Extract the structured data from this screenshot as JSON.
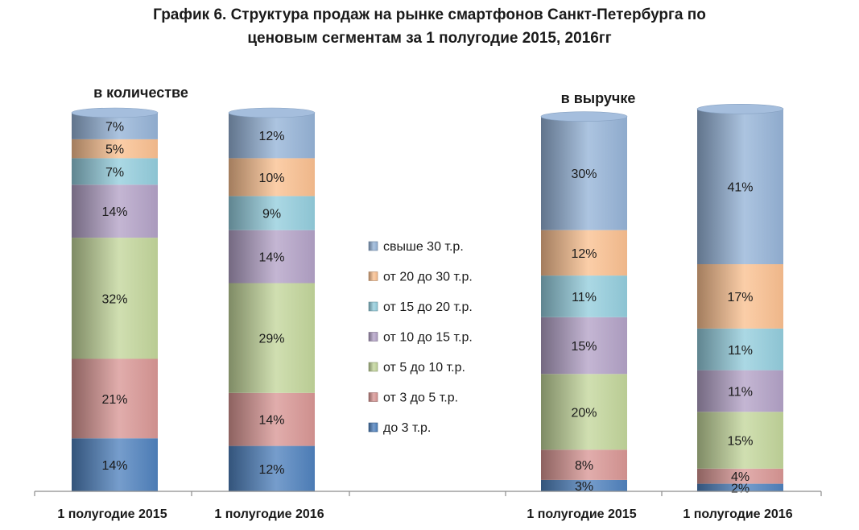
{
  "chart_data": {
    "type": "bar",
    "stacked": true,
    "percent": true,
    "title": [
      "График 6. Структура продаж на рынке смартфонов Санкт-Петербурга по",
      "ценовым сегментам за 1 полугодие 2015, 2016гг"
    ],
    "groups": [
      {
        "label": "в количестве",
        "categories": [
          "1 полугодие 2015",
          "1 полугодие 2016"
        ]
      },
      {
        "label": "в выручке",
        "categories": [
          "1 полугодие 2015",
          "1 полугодие 2016"
        ]
      }
    ],
    "categories": [
      "1 полугодие 2015",
      "1 полугодие 2016",
      "1 полугодие 2015",
      "1 полугодие 2016"
    ],
    "series": [
      {
        "name": "до 3 т.р.",
        "color": "#4f81bd",
        "values": [
          14,
          12,
          3,
          2
        ],
        "labels": [
          "14%",
          "12%",
          "3%",
          "2%"
        ]
      },
      {
        "name": "от 3 до 5 т.р.",
        "color": "#d99694",
        "values": [
          21,
          14,
          8,
          4
        ],
        "labels": [
          "21%",
          "14%",
          "8%",
          "4%"
        ]
      },
      {
        "name": "от 5 до 10 т.р.",
        "color": "#c3d69b",
        "values": [
          32,
          29,
          20,
          15
        ],
        "labels": [
          "32%",
          "29%",
          "20%",
          "15%"
        ]
      },
      {
        "name": "от 10 до 15 т.р.",
        "color": "#b3a2c7",
        "values": [
          14,
          14,
          15,
          11
        ],
        "labels": [
          "14%",
          "14%",
          "15%",
          "11%"
        ]
      },
      {
        "name": "от 15 до 20 т.р.",
        "color": "#93cddd",
        "values": [
          7,
          9,
          11,
          11
        ],
        "labels": [
          "7%",
          "9%",
          "11%",
          "11%"
        ]
      },
      {
        "name": "от 20 до 30 т.р.",
        "color": "#fac090",
        "values": [
          5,
          10,
          12,
          17
        ],
        "labels": [
          "5%",
          "10%",
          "12%",
          "17%"
        ]
      },
      {
        "name": "свыше 30 т.р.",
        "color": "#95b3d7",
        "values": [
          7,
          12,
          30,
          41
        ],
        "labels": [
          "7%",
          "12%",
          "30%",
          "41%"
        ]
      }
    ],
    "legend": "center",
    "grid": false
  }
}
